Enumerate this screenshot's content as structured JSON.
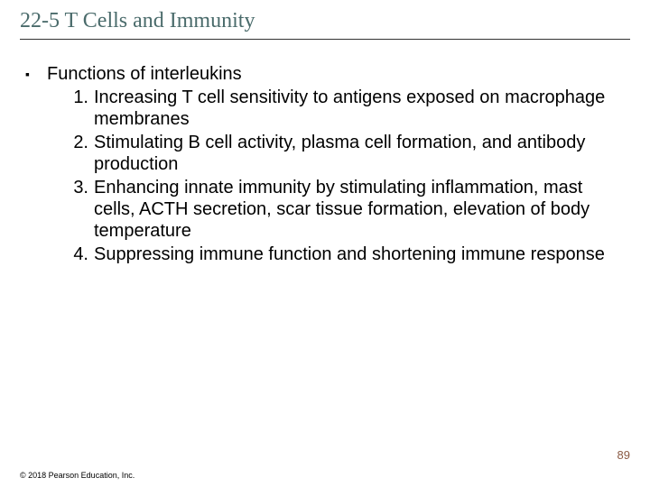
{
  "title": "22-5 T Cells and Immunity",
  "bullet": {
    "marker": "▪",
    "text": "Functions of interleukins"
  },
  "items": [
    {
      "n": "1.",
      "text": "Increasing T cell sensitivity to antigens exposed on macrophage membranes"
    },
    {
      "n": "2.",
      "text": "Stimulating B cell activity, plasma cell formation, and antibody production"
    },
    {
      "n": "3.",
      "text": "Enhancing innate immunity by stimulating inflammation, mast cells, ACTH secretion, scar tissue formation, elevation of body temperature"
    },
    {
      "n": "4.",
      "text": "Suppressing immune function and shortening immune response"
    }
  ],
  "pageNumber": "89",
  "copyright": "© 2018 Pearson Education, Inc.",
  "colors": {
    "title": "#4a6b6b",
    "underline": "#333333",
    "text": "#000000",
    "pageNumber": "#8a5a44",
    "background": "#ffffff"
  },
  "fonts": {
    "titleFamily": "Times New Roman",
    "titleSize": 24,
    "bodyFamily": "Arial",
    "bodySize": 20,
    "pageNumSize": 13,
    "copyrightSize": 9
  }
}
